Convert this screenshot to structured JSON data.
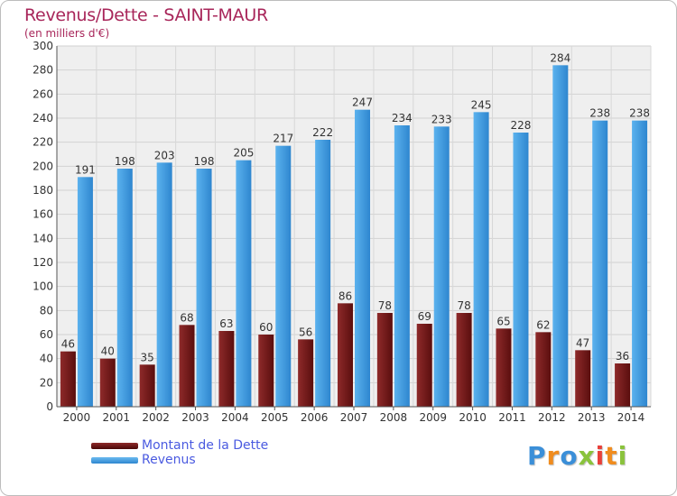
{
  "chart_data": {
    "type": "bar",
    "title": "Revenus/Dette - SAINT-MAUR",
    "subtitle": "(en milliers d'€)",
    "xlabel": "",
    "ylabel": "",
    "ylim": [
      0,
      300
    ],
    "yticks": [
      0,
      20,
      40,
      60,
      80,
      100,
      120,
      140,
      160,
      180,
      200,
      220,
      240,
      260,
      280,
      300
    ],
    "grid": true,
    "legend_position": "bottom-left",
    "categories": [
      "2000",
      "2001",
      "2002",
      "2003",
      "2004",
      "2005",
      "2006",
      "2007",
      "2008",
      "2009",
      "2010",
      "2011",
      "2012",
      "2013",
      "2014"
    ],
    "series": [
      {
        "name": "Montant de la Dette",
        "color": "#7a1c1c",
        "values": [
          46,
          40,
          35,
          68,
          63,
          60,
          56,
          86,
          78,
          69,
          78,
          65,
          62,
          47,
          36
        ]
      },
      {
        "name": "Revenus",
        "color": "#3d9be0",
        "values": [
          191,
          198,
          203,
          198,
          205,
          217,
          222,
          247,
          234,
          233,
          245,
          228,
          284,
          238,
          238
        ]
      }
    ]
  },
  "logo": {
    "letters": [
      {
        "ch": "P",
        "color": "#3b8fd8"
      },
      {
        "ch": "r",
        "color": "#f08c1e"
      },
      {
        "ch": "o",
        "color": "#3b8fd8"
      },
      {
        "ch": "x",
        "color": "#8ac33c"
      },
      {
        "ch": "i",
        "color": "#e8403a"
      },
      {
        "ch": "t",
        "color": "#f08c1e"
      },
      {
        "ch": "i",
        "color": "#8ac33c"
      }
    ]
  }
}
